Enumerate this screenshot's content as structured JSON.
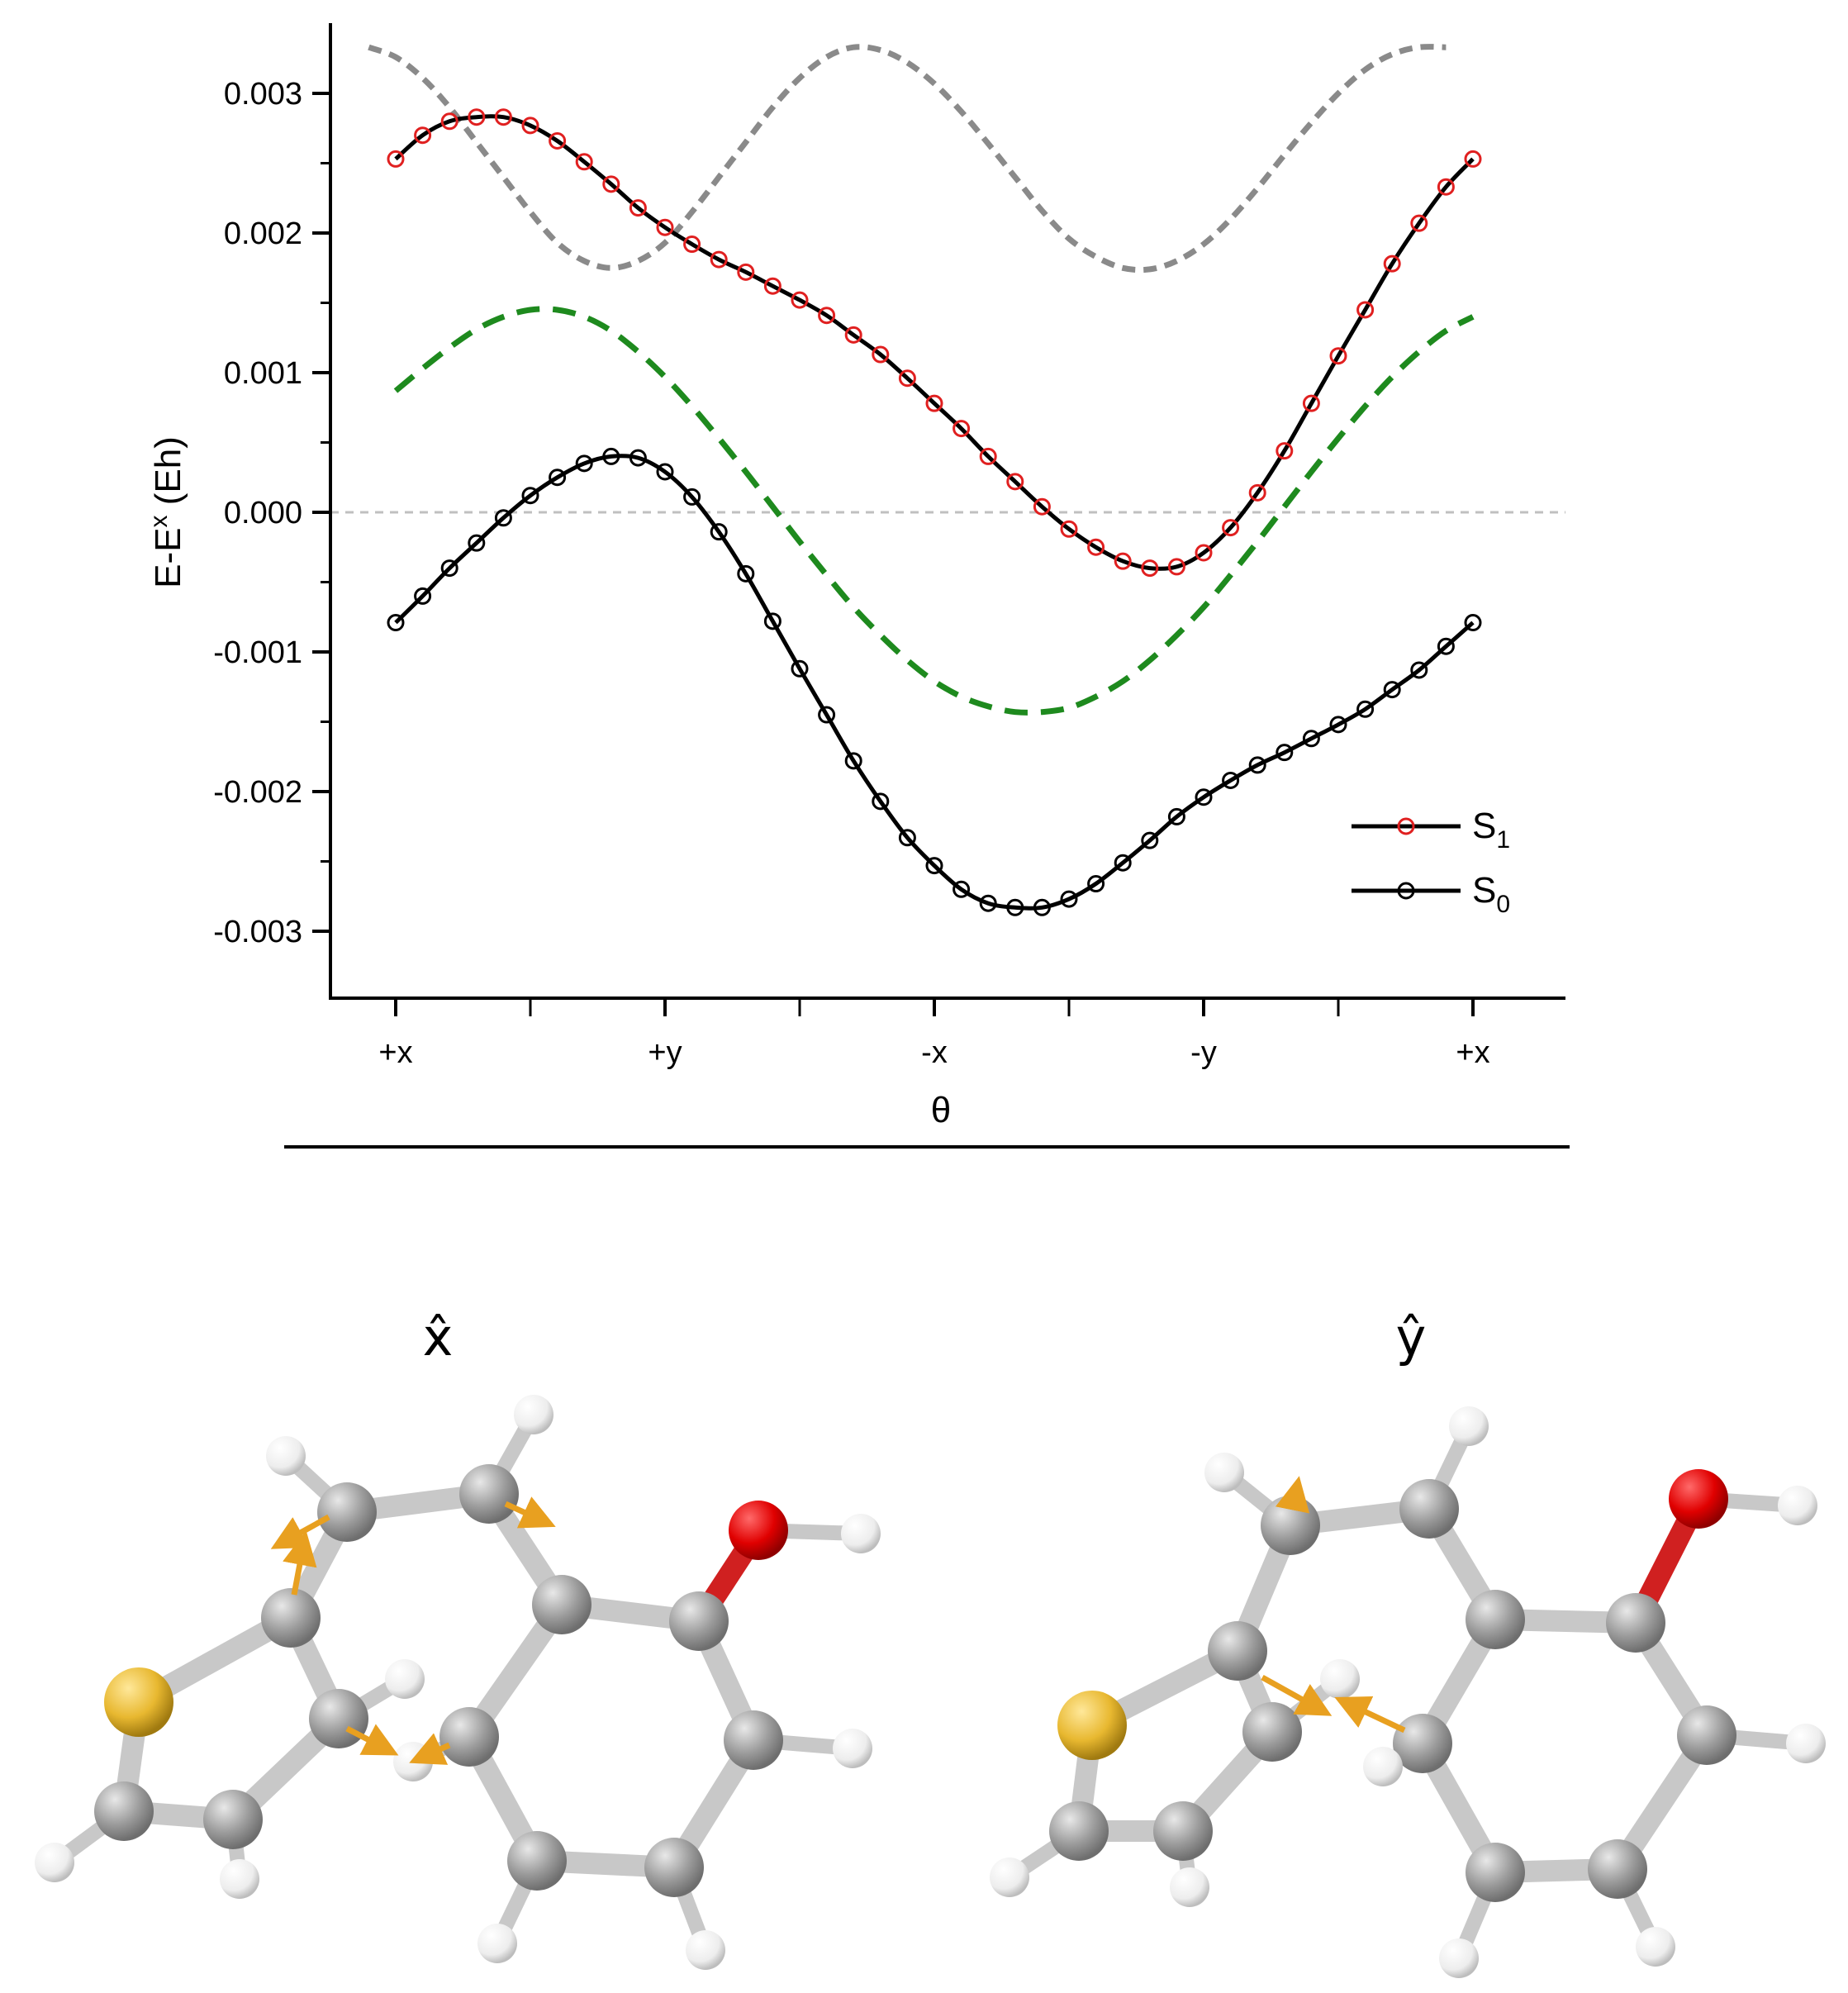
{
  "chart_data": {
    "type": "line",
    "ylabel": "E-E",
    "ylabel_superscript": "x",
    "ylabel_unit": " (Eh)",
    "xlabel": "θ",
    "ylim": [
      -0.0035,
      0.0035
    ],
    "xlim": [
      -0.25,
      4.25
    ],
    "x_ticks": [
      {
        "x": 0,
        "label": "+x"
      },
      {
        "x": 1,
        "label": "+y"
      },
      {
        "x": 2,
        "label": "-x"
      },
      {
        "x": 3,
        "label": "-y"
      },
      {
        "x": 4,
        "label": "+x"
      }
    ],
    "x_minor_ticks": [
      0.5,
      1.5,
      2.5,
      3.5
    ],
    "y_ticks": [
      {
        "y": 0.003,
        "label": "0.003"
      },
      {
        "y": 0.002,
        "label": "0.002"
      },
      {
        "y": 0.001,
        "label": "0.001"
      },
      {
        "y": 0.0,
        "label": "0.000"
      },
      {
        "y": -0.001,
        "label": "-0.001"
      },
      {
        "y": -0.002,
        "label": "-0.002"
      },
      {
        "y": -0.003,
        "label": "-0.003"
      }
    ],
    "y_minor_ticks": [
      0.0025,
      0.0015,
      0.0005,
      -0.0005,
      -0.0015,
      -0.0025
    ],
    "reference_line_y": 0.0,
    "series": [
      {
        "name": "S",
        "name_subscript": "1",
        "style": "solid-with-circles",
        "line_color": "#000000",
        "marker_color": "#e02020",
        "x": [
          0,
          0.1,
          0.2,
          0.3,
          0.4,
          0.5,
          0.6,
          0.7,
          0.8,
          0.9,
          1.0,
          1.1,
          1.2,
          1.3,
          1.4,
          1.5,
          1.6,
          1.7,
          1.8,
          1.9,
          2.0,
          2.1,
          2.2,
          2.3,
          2.4,
          2.5,
          2.6,
          2.7,
          2.8,
          2.9,
          3.0,
          3.1,
          3.2,
          3.3,
          3.4,
          3.5,
          3.6,
          3.7,
          3.8,
          3.9,
          4.0
        ],
        "y": [
          0.00253,
          0.0027,
          0.0028,
          0.00283,
          0.00283,
          0.00277,
          0.00266,
          0.00251,
          0.00235,
          0.00218,
          0.00204,
          0.00192,
          0.00181,
          0.00172,
          0.00162,
          0.00152,
          0.00141,
          0.00127,
          0.00113,
          0.00096,
          0.00078,
          0.0006,
          0.0004,
          0.00022,
          4e-05,
          -0.00012,
          -0.00025,
          -0.00035,
          -0.0004,
          -0.00039,
          -0.00029,
          -0.00011,
          0.00014,
          0.00044,
          0.00078,
          0.00112,
          0.00145,
          0.00178,
          0.00207,
          0.00233,
          0.00253
        ]
      },
      {
        "name": "S",
        "name_subscript": "0",
        "style": "solid-with-circles",
        "line_color": "#000000",
        "marker_color": "#000000",
        "x": [
          0,
          0.1,
          0.2,
          0.3,
          0.4,
          0.5,
          0.6,
          0.7,
          0.8,
          0.9,
          1.0,
          1.1,
          1.2,
          1.3,
          1.4,
          1.5,
          1.6,
          1.7,
          1.8,
          1.9,
          2.0,
          2.1,
          2.2,
          2.3,
          2.4,
          2.5,
          2.6,
          2.7,
          2.8,
          2.9,
          3.0,
          3.1,
          3.2,
          3.3,
          3.4,
          3.5,
          3.6,
          3.7,
          3.8,
          3.9,
          4.0
        ],
        "y": [
          -0.00079,
          -0.0006,
          -0.0004,
          -0.00022,
          -4e-05,
          0.00012,
          0.00025,
          0.00035,
          0.0004,
          0.00039,
          0.00029,
          0.00011,
          -0.00014,
          -0.00044,
          -0.00078,
          -0.00112,
          -0.00145,
          -0.00178,
          -0.00207,
          -0.00233,
          -0.00253,
          -0.0027,
          -0.0028,
          -0.00283,
          -0.00283,
          -0.00277,
          -0.00266,
          -0.00251,
          -0.00235,
          -0.00218,
          -0.00204,
          -0.00192,
          -0.00181,
          -0.00172,
          -0.00162,
          -0.00152,
          -0.00141,
          -0.00127,
          -0.00113,
          -0.00096,
          -0.00079
        ]
      },
      {
        "style": "dashed",
        "line_color": "#1e8a1e",
        "x": [
          0,
          0.1,
          0.2,
          0.3,
          0.4,
          0.5,
          0.6,
          0.7,
          0.8,
          0.9,
          1.0,
          1.1,
          1.2,
          1.3,
          1.4,
          1.5,
          1.6,
          1.7,
          1.8,
          1.9,
          2.0,
          2.1,
          2.2,
          2.3,
          2.4,
          2.5,
          2.6,
          2.7,
          2.8,
          2.9,
          3.0,
          3.1,
          3.2,
          3.3,
          3.4,
          3.5,
          3.6,
          3.7,
          3.8,
          3.9,
          4.0
        ],
        "y": [
          0.00087,
          0.00103,
          0.00118,
          0.00131,
          0.0014,
          0.00145,
          0.00145,
          0.0014,
          0.0013,
          0.00115,
          0.00097,
          0.00076,
          0.00053,
          0.00029,
          4e-05,
          -0.00021,
          -0.00045,
          -0.00068,
          -0.00088,
          -0.00106,
          -0.00121,
          -0.00132,
          -0.00139,
          -0.00143,
          -0.00143,
          -0.0014,
          -0.00132,
          -0.00121,
          -0.00106,
          -0.00088,
          -0.00068,
          -0.00045,
          -0.00021,
          4e-05,
          0.00029,
          0.00053,
          0.00076,
          0.00097,
          0.00115,
          0.0013,
          0.0014
        ]
      },
      {
        "style": "dashed",
        "line_color": "#8a8a8a",
        "x": [
          -0.1,
          0.0,
          0.1,
          0.2,
          0.3,
          0.4,
          0.5,
          0.6,
          0.7,
          0.8,
          0.9,
          1.0,
          1.1,
          1.2,
          1.3,
          1.4,
          1.5,
          1.6,
          1.7,
          1.8,
          1.9,
          2.0,
          2.1,
          2.2,
          2.3,
          2.4,
          2.5,
          2.6,
          2.7,
          2.8,
          2.9,
          3.0,
          3.1,
          3.2,
          3.3,
          3.4,
          3.5,
          3.6,
          3.7,
          3.8,
          3.9
        ],
        "y": [
          0.00333,
          0.00326,
          0.00311,
          0.0029,
          0.00265,
          0.0024,
          0.00215,
          0.00193,
          0.0018,
          0.00175,
          0.0018,
          0.00193,
          0.00215,
          0.0024,
          0.00265,
          0.0029,
          0.00311,
          0.00326,
          0.00333,
          0.00331,
          0.00322,
          0.00307,
          0.00287,
          0.00264,
          0.0024,
          0.00216,
          0.00196,
          0.00183,
          0.00175,
          0.00174,
          0.0018,
          0.00192,
          0.0021,
          0.00232,
          0.00256,
          0.00279,
          0.003,
          0.00317,
          0.00328,
          0.00333,
          0.00333
        ]
      }
    ],
    "legend_placement": "lower-right"
  },
  "molecules": [
    {
      "label": "x̂",
      "arrow_color": "#e8a020"
    },
    {
      "label": "ŷ",
      "arrow_color": "#e8a020"
    }
  ],
  "atom_colors": {
    "carbon": "#9c9c9c",
    "hydrogen": "#f2f2f2",
    "oxygen": "#e00000",
    "sulfur": "#e8b830",
    "bond": "#c8c8c8"
  }
}
